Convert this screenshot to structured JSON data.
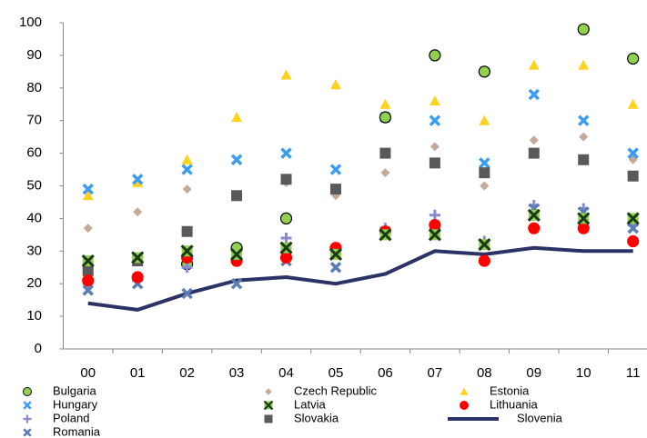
{
  "chart_data": {
    "type": "scatter",
    "categories": [
      "00",
      "01",
      "02",
      "03",
      "04",
      "05",
      "06",
      "07",
      "08",
      "09",
      "10",
      "11"
    ],
    "ylim": [
      0,
      100
    ],
    "yticks": [
      0,
      10,
      20,
      30,
      40,
      50,
      60,
      70,
      80,
      90,
      100
    ],
    "series": [
      {
        "name": "Bulgaria",
        "color": "#92d050",
        "marker": "circle",
        "values": [
          null,
          null,
          26,
          31,
          40,
          null,
          71,
          90,
          85,
          null,
          98,
          89
        ]
      },
      {
        "name": "Czech Republic",
        "color": "#c4aa98",
        "marker": "diamond",
        "values": [
          37,
          42,
          49,
          47,
          51,
          47,
          54,
          62,
          50,
          64,
          65,
          58
        ]
      },
      {
        "name": "Estonia",
        "color": "#ffd21f",
        "marker": "triangle",
        "values": [
          47,
          51,
          58,
          71,
          84,
          81,
          75,
          76,
          70,
          87,
          87,
          75
        ]
      },
      {
        "name": "Hungary",
        "color": "#3c9cf0",
        "marker": "x",
        "values": [
          49,
          52,
          55,
          58,
          60,
          55,
          71,
          70,
          57,
          78,
          70,
          60
        ]
      },
      {
        "name": "Latvia",
        "color": "#1a3a1a",
        "marker": "xbox",
        "values": [
          27,
          28,
          30,
          29,
          31,
          29,
          35,
          35,
          32,
          41,
          40,
          40
        ]
      },
      {
        "name": "Lithuania",
        "color": "#ff0000",
        "marker": "circle",
        "values": [
          21,
          22,
          28,
          27,
          28,
          31,
          36,
          38,
          27,
          37,
          37,
          33
        ]
      },
      {
        "name": "Poland",
        "color": "#8a8ad0",
        "marker": "plus",
        "values": [
          20,
          21,
          25,
          27,
          34,
          30,
          37,
          41,
          33,
          44,
          43,
          38
        ]
      },
      {
        "name": "Slovakia",
        "color": "#595959",
        "marker": "square",
        "values": [
          24,
          27,
          36,
          47,
          52,
          49,
          60,
          57,
          54,
          60,
          58,
          53
        ]
      },
      {
        "name": "Slovenia",
        "color": "#2b3366",
        "marker": "line",
        "values": [
          14,
          12,
          17,
          21,
          22,
          20,
          23,
          30,
          29,
          31,
          30,
          30
        ]
      },
      {
        "name": "Romania",
        "color": "#5b7db5",
        "marker": "x",
        "values": [
          18,
          20,
          17,
          20,
          27,
          25,
          36,
          36,
          32,
          43,
          42,
          37
        ]
      }
    ]
  }
}
